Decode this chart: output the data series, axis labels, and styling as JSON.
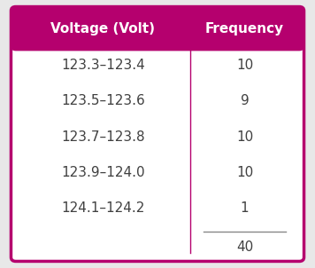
{
  "header": [
    "Voltage (Volt)",
    "Frequency"
  ],
  "rows": [
    [
      "123.3–123.4",
      "10"
    ],
    [
      "123.5–123.6",
      "9"
    ],
    [
      "123.7–123.8",
      "10"
    ],
    [
      "123.9–124.0",
      "10"
    ],
    [
      "124.1–124.2",
      "1"
    ]
  ],
  "total": "40",
  "header_bg": "#b5006e",
  "header_text_color": "#ffffff",
  "body_bg": "#ffffff",
  "body_text_color": "#404040",
  "border_color": "#b5006e",
  "divider_color": "#b5006e",
  "total_line_color": "#888888",
  "header_fontsize": 11,
  "body_fontsize": 11,
  "total_fontsize": 11,
  "fig_bg": "#e8e8e8",
  "figsize": [
    3.56,
    3.02
  ],
  "dpi": 100
}
